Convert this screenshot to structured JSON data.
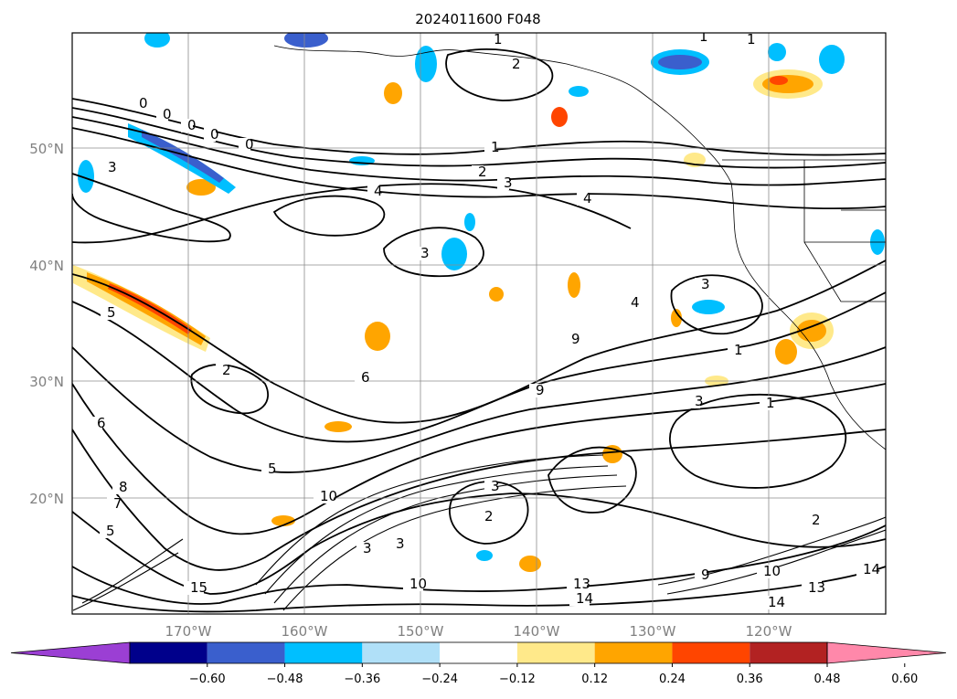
{
  "title": "2024011600 F048",
  "map": {
    "lat_labels": [
      "50°N",
      "40°N",
      "30°N",
      "20°N"
    ],
    "lon_labels": [
      "170°W",
      "160°W",
      "150°W",
      "140°W",
      "130°W",
      "120°W"
    ],
    "gridlines": true,
    "contour_labels": [
      "0",
      "0",
      "0",
      "0",
      "0",
      "1",
      "1",
      "1",
      "1",
      "2",
      "2",
      "2",
      "3",
      "3",
      "3",
      "3",
      "3",
      "4",
      "4",
      "4",
      "5",
      "5",
      "5",
      "6",
      "6",
      "7",
      "8",
      "9",
      "9",
      "10",
      "10",
      "13",
      "13",
      "14",
      "14",
      "14",
      "15",
      "2",
      "3",
      "1",
      "3",
      "9",
      "10",
      "2",
      "3",
      "1"
    ]
  },
  "colorbar": {
    "ticks": [
      "−0.60",
      "−0.48",
      "−0.36",
      "−0.24",
      "−0.12",
      "0.12",
      "0.24",
      "0.36",
      "0.48",
      "0.60"
    ],
    "colors": [
      "#9b3fd4",
      "#00008b",
      "#3a5fcd",
      "#00bfff",
      "#b0e0f8",
      "#ffffff",
      "#ffe98a",
      "#ffa500",
      "#ff4500",
      "#b22222",
      "#ff88aa"
    ]
  }
}
